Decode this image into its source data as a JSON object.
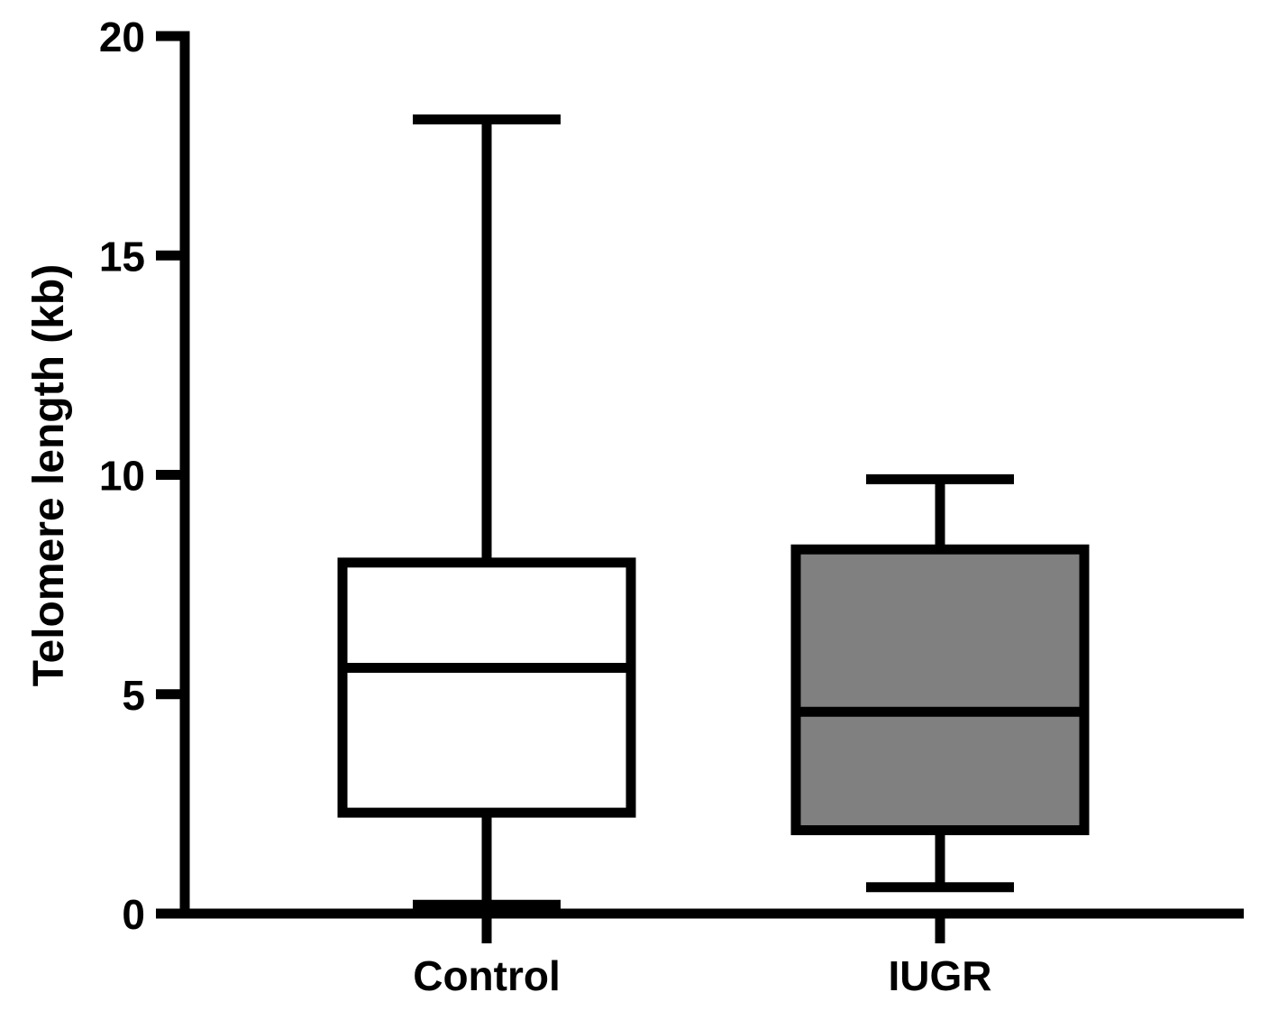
{
  "chart_data": {
    "type": "box",
    "title": "",
    "xlabel": "",
    "ylabel": "Telomere length (kb)",
    "ylim": [
      0,
      20
    ],
    "yticks": [
      0,
      5,
      10,
      15,
      20
    ],
    "grid": false,
    "legend": "none",
    "categories": [
      "Control",
      "IUGR"
    ],
    "boxes": [
      {
        "category": "Control",
        "min": 0.2,
        "q1": 2.3,
        "median": 5.6,
        "q3": 8.0,
        "max": 18.1,
        "fill": "#ffffff"
      },
      {
        "category": "IUGR",
        "min": 0.6,
        "q1": 1.9,
        "median": 4.6,
        "q3": 8.3,
        "max": 9.9,
        "fill": "#808080"
      }
    ]
  }
}
